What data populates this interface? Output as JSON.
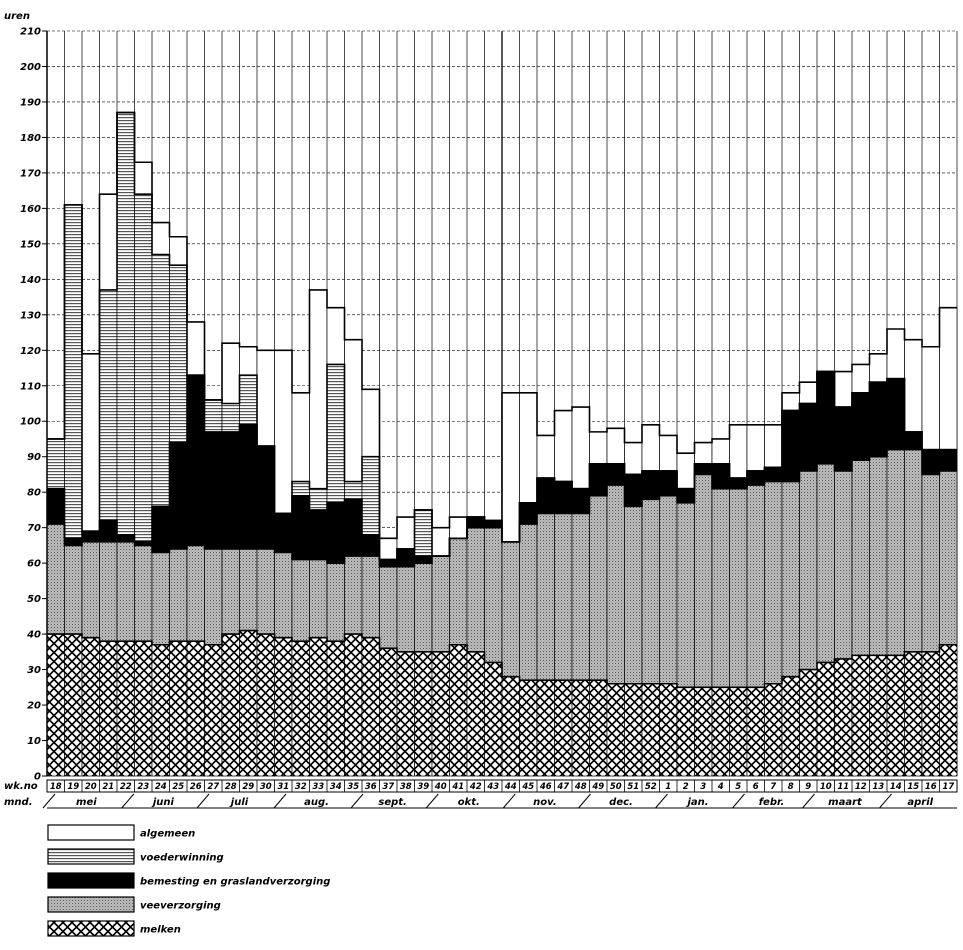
{
  "chart_data": {
    "type": "bar",
    "stacked": true,
    "ylabel": "uren",
    "ylim": [
      0,
      210
    ],
    "yticks": [
      0,
      10,
      20,
      30,
      40,
      50,
      60,
      70,
      80,
      90,
      100,
      110,
      120,
      130,
      140,
      150,
      160,
      170,
      180,
      190,
      200,
      210
    ],
    "xlabel_week": "wk.no",
    "xlabel_month": "mnd.",
    "weeks": [
      "18",
      "19",
      "20",
      "21",
      "22",
      "23",
      "24",
      "25",
      "26",
      "27",
      "28",
      "29",
      "30",
      "31",
      "32",
      "33",
      "34",
      "35",
      "36",
      "37",
      "38",
      "39",
      "40",
      "41",
      "42",
      "43",
      "44",
      "45",
      "46",
      "47",
      "48",
      "49",
      "50",
      "51",
      "52",
      "1",
      "2",
      "3",
      "4",
      "5",
      "6",
      "7",
      "8",
      "9",
      "10",
      "11",
      "12",
      "13",
      "14",
      "15",
      "16",
      "17"
    ],
    "months": [
      {
        "label": "mei",
        "start": 0,
        "end": 4.5
      },
      {
        "label": "juni",
        "start": 4.5,
        "end": 8.8
      },
      {
        "label": "juli",
        "start": 8.8,
        "end": 13.2
      },
      {
        "label": "aug.",
        "start": 13.2,
        "end": 17.6
      },
      {
        "label": "sept.",
        "start": 17.6,
        "end": 21.9
      },
      {
        "label": "okt.",
        "start": 21.9,
        "end": 26.3
      },
      {
        "label": "nov.",
        "start": 26.3,
        "end": 30.6
      },
      {
        "label": "dec.",
        "start": 30.6,
        "end": 35.0
      },
      {
        "label": "jan.",
        "start": 35.0,
        "end": 39.4
      },
      {
        "label": "febr.",
        "start": 39.4,
        "end": 43.4
      },
      {
        "label": "maart",
        "start": 43.4,
        "end": 47.8
      },
      {
        "label": "april",
        "start": 47.8,
        "end": 52
      }
    ],
    "series": [
      {
        "name": "melken",
        "values": [
          40,
          40,
          39,
          38,
          38,
          38,
          37,
          38,
          38,
          37,
          40,
          41,
          40,
          39,
          38,
          39,
          38,
          40,
          39,
          36,
          35,
          35,
          35,
          37,
          35,
          32,
          28,
          27,
          27,
          27,
          27,
          27,
          26,
          26,
          26,
          26,
          25,
          25,
          25,
          25,
          25,
          26,
          28,
          30,
          32,
          33,
          34,
          34,
          34,
          35,
          35,
          37
        ]
      },
      {
        "name": "veeverzorging",
        "values": [
          31,
          25,
          27,
          28,
          28,
          27,
          26,
          26,
          27,
          27,
          24,
          23,
          24,
          24,
          23,
          22,
          22,
          22,
          23,
          23,
          24,
          25,
          27,
          30,
          35,
          38,
          38,
          44,
          47,
          47,
          47,
          52,
          56,
          50,
          52,
          53,
          52,
          60,
          56,
          56,
          57,
          57,
          55,
          56,
          56,
          53,
          55,
          56,
          58,
          57,
          50,
          49
        ]
      },
      {
        "name": "bemesting en graslandverzorging",
        "values": [
          10,
          2,
          3,
          6,
          2,
          1,
          13,
          30,
          48,
          33,
          33,
          35,
          29,
          11,
          18,
          14,
          17,
          16,
          6,
          2,
          5,
          2,
          0,
          0,
          3,
          2,
          0,
          6,
          10,
          9,
          7,
          9,
          6,
          9,
          8,
          7,
          4,
          3,
          7,
          3,
          4,
          4,
          20,
          19,
          26,
          18,
          19,
          21,
          20,
          5,
          7,
          6
        ]
      },
      {
        "name": "voederwinning",
        "values": [
          14,
          94,
          0,
          65,
          119,
          98,
          71,
          50,
          0,
          9,
          8,
          14,
          0,
          0,
          4,
          6,
          39,
          5,
          22,
          0,
          0,
          13,
          0,
          0,
          0,
          0,
          0,
          0,
          0,
          0,
          0,
          0,
          0,
          0,
          0,
          0,
          0,
          0,
          0,
          0,
          0,
          0,
          0,
          0,
          0,
          0,
          0,
          0,
          0,
          0,
          0,
          0
        ]
      },
      {
        "name": "algemeen",
        "values": [
          0,
          0,
          50,
          27,
          0,
          9,
          9,
          8,
          15,
          0,
          17,
          8,
          27,
          46,
          25,
          56,
          16,
          40,
          19,
          6,
          9,
          0,
          8,
          6,
          0,
          0,
          42,
          31,
          12,
          20,
          23,
          9,
          10,
          9,
          13,
          10,
          10,
          6,
          7,
          15,
          13,
          12,
          5,
          6,
          0,
          10,
          8,
          8,
          14,
          26,
          29,
          40
        ]
      }
    ],
    "legend": [
      "algemeen",
      "voederwinning",
      "bemesting en graslandverzorging",
      "veeverzorging",
      "melken"
    ]
  }
}
